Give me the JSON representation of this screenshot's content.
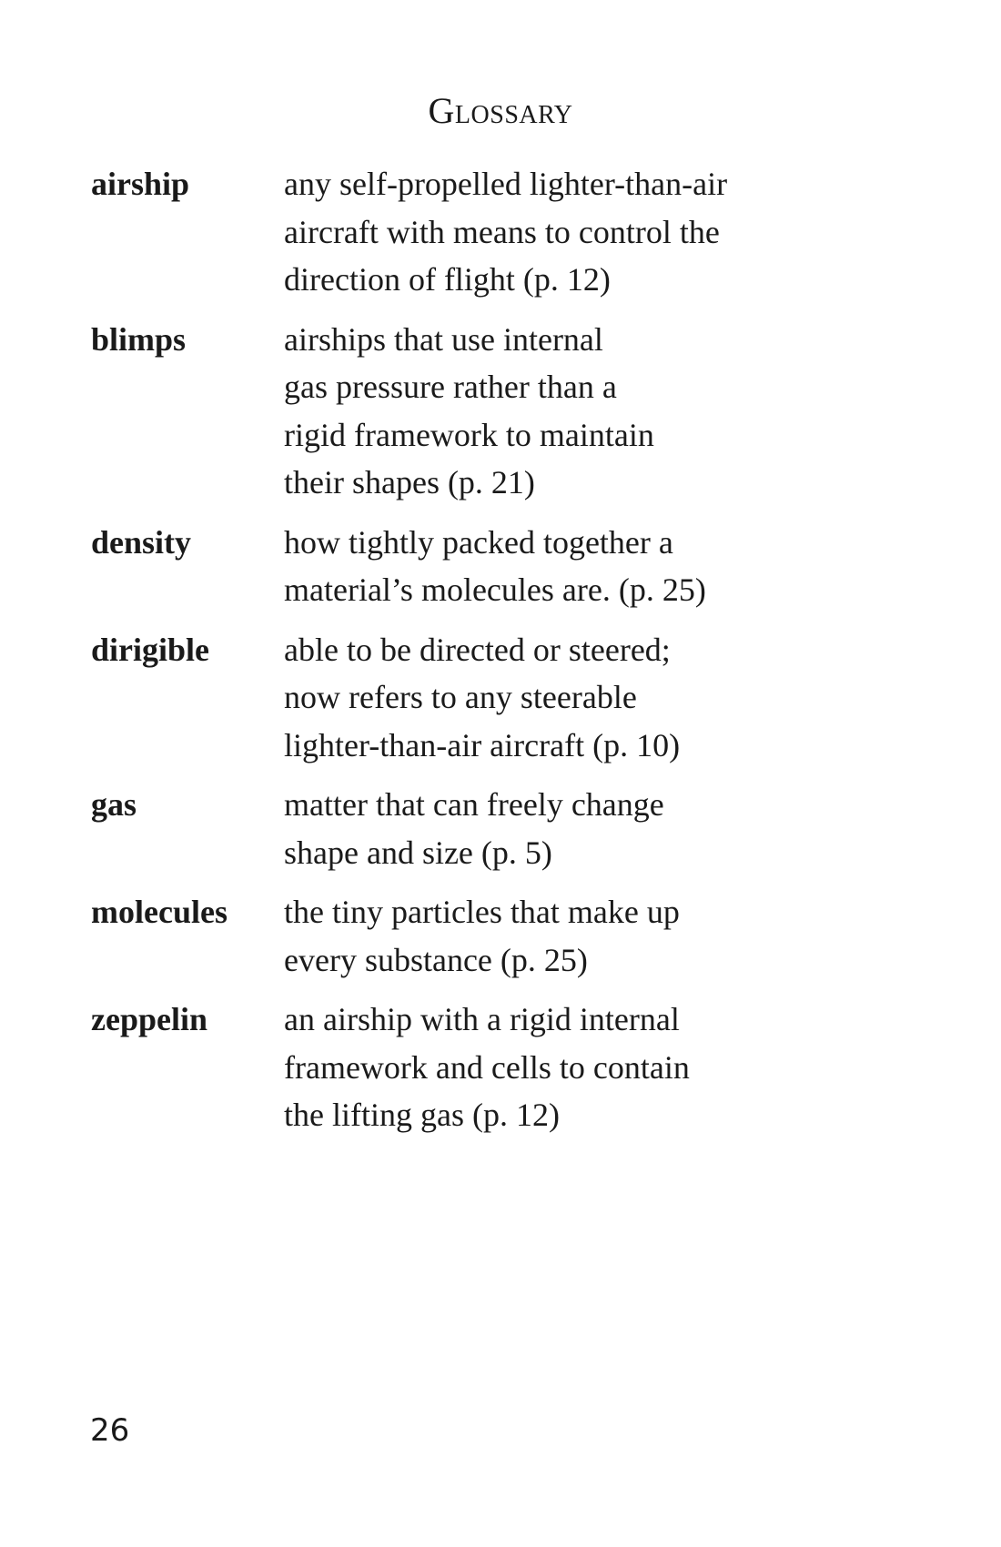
{
  "page": {
    "title": "Glossary",
    "page_number": "26"
  },
  "glossary": [
    {
      "term": "airship",
      "definition_lines": [
        "any self-propelled lighter-than-air",
        "aircraft with means to control the",
        "direction of flight (p. 12)"
      ]
    },
    {
      "term": "blimps",
      "definition_lines": [
        "airships that use internal",
        "gas pressure rather than a",
        "rigid framework to maintain",
        "their shapes (p. 21)"
      ]
    },
    {
      "term": "density",
      "definition_lines": [
        "how tightly packed together a",
        "material’s molecules are. (p. 25)"
      ]
    },
    {
      "term": "dirigible",
      "definition_lines": [
        "able to be directed or steered;",
        "now refers to any steerable",
        "lighter-than-air aircraft (p. 10)"
      ]
    },
    {
      "term": "gas",
      "definition_lines": [
        "matter that can freely change",
        "shape and size (p. 5)"
      ]
    },
    {
      "term": "molecules",
      "definition_lines": [
        "the tiny particles that make up",
        "every substance (p. 25)"
      ]
    },
    {
      "term": "zeppelin",
      "definition_lines": [
        "an airship with a rigid internal",
        "framework and cells to contain",
        "the lifting gas (p. 12)"
      ]
    }
  ]
}
